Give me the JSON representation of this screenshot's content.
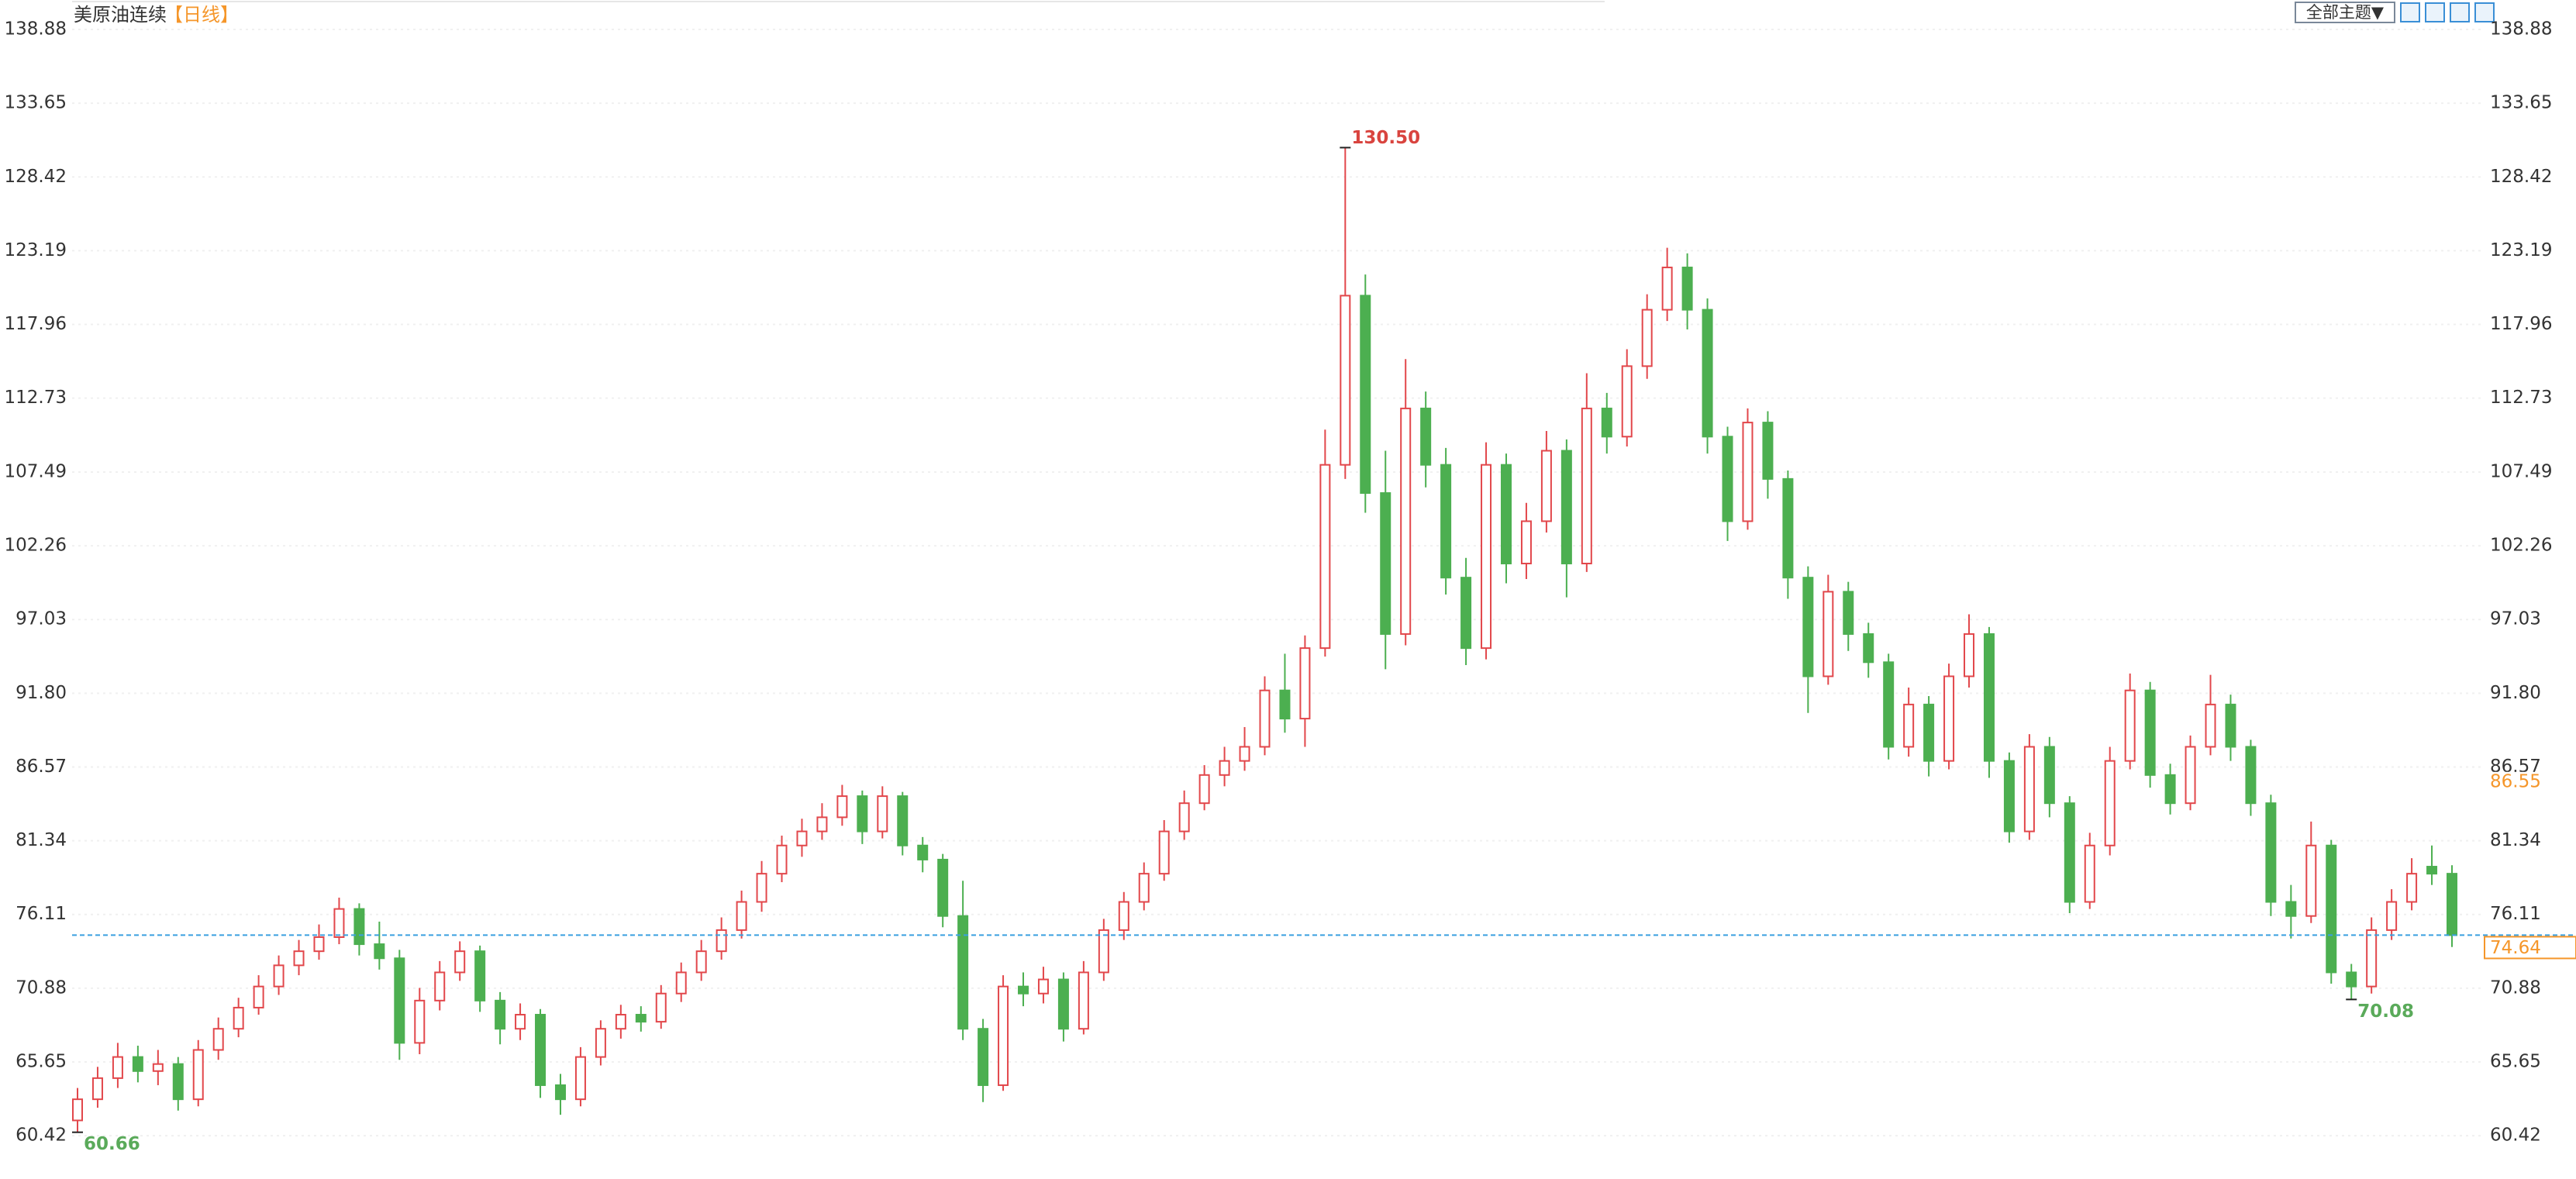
{
  "chart_data": {
    "type": "candlestick",
    "title": "美原油连续",
    "period": "【日线】",
    "theme_button": "全部主题▼",
    "ylim": [
      57.62,
      140.97
    ],
    "yticks": [
      60.42,
      65.65,
      70.88,
      76.11,
      81.34,
      86.57,
      {
        "value": 91.8,
        "label": "91.80"
      },
      97.03,
      102.26,
      107.49,
      112.73,
      117.96,
      123.19,
      128.42,
      133.65,
      138.88
    ],
    "grid": true,
    "up_color": "#e2474b",
    "down_color": "#4caf50",
    "open": [
      61.5,
      63,
      64.5,
      66,
      65,
      65.5,
      63,
      66.5,
      68,
      69.5,
      71,
      72.5,
      73.5,
      74.5,
      76.5,
      74,
      73,
      67,
      70,
      72,
      73.5,
      70,
      68,
      69,
      64,
      63,
      66,
      68,
      69,
      68.5,
      70.5,
      72,
      73.5,
      75,
      77,
      79,
      81,
      82,
      83,
      84.5,
      82,
      84.5,
      81,
      80,
      76,
      68,
      64,
      71,
      70.5,
      71.5,
      68,
      72,
      75,
      77,
      79,
      82,
      84,
      86,
      87,
      88,
      92,
      90,
      95,
      108,
      120,
      106,
      96,
      112,
      108,
      100,
      95,
      108,
      101,
      104,
      109,
      101,
      112,
      110,
      115,
      119,
      122,
      119,
      110,
      104,
      111,
      107,
      100,
      93,
      99,
      96,
      94,
      88,
      91,
      87,
      93,
      96,
      87,
      82,
      88,
      84,
      77,
      81,
      87,
      92,
      86,
      84,
      88,
      91,
      88,
      84,
      77,
      76,
      81,
      72,
      71,
      75,
      77,
      79.5,
      79
    ],
    "high": [
      63.8,
      65.3,
      67,
      66.8,
      66.5,
      66,
      67.2,
      68.8,
      70.2,
      71.8,
      73.2,
      74.3,
      75.4,
      77.3,
      76.9,
      75.6,
      73.6,
      70.9,
      72.8,
      74.2,
      73.9,
      70.6,
      69.8,
      69.4,
      64.8,
      66.7,
      68.6,
      69.7,
      69.6,
      71.1,
      72.7,
      74.3,
      75.9,
      77.8,
      79.9,
      81.7,
      82.9,
      84,
      85.3,
      84.9,
      85.2,
      84.8,
      81.6,
      80.4,
      78.5,
      68.7,
      71.8,
      72,
      72.4,
      72,
      72.8,
      75.8,
      77.7,
      79.8,
      82.8,
      84.9,
      86.7,
      88,
      89.4,
      93,
      94.6,
      95.9,
      110.5,
      130.5,
      121.5,
      109,
      115.5,
      113.2,
      109.2,
      101.4,
      109.6,
      108.8,
      105.3,
      110.4,
      109.8,
      114.5,
      113.1,
      116.2,
      120.1,
      123.4,
      123,
      119.8,
      110.7,
      112,
      111.8,
      107.6,
      100.8,
      100.2,
      99.7,
      96.8,
      94.6,
      92.2,
      91.6,
      93.9,
      97.4,
      96.5,
      87.6,
      88.9,
      88.7,
      84.5,
      81.9,
      88,
      93.2,
      92.6,
      86.8,
      88.8,
      93.1,
      91.7,
      88.5,
      84.6,
      78.2,
      82.7,
      81.4,
      72.6,
      75.9,
      77.9,
      80.1,
      81,
      79.6
    ],
    "low": [
      60.66,
      62.4,
      63.8,
      64.2,
      64,
      62.2,
      62.5,
      65.8,
      67.4,
      69,
      70.4,
      71.8,
      72.9,
      74,
      73.2,
      72.2,
      65.8,
      66.2,
      69.3,
      71.4,
      69.2,
      66.9,
      67.2,
      63.1,
      61.9,
      62.5,
      65.4,
      67.3,
      67.8,
      68,
      69.9,
      71.4,
      72.9,
      74.4,
      76.3,
      78.4,
      80.2,
      81.4,
      82.4,
      81.1,
      81.5,
      80.3,
      79.1,
      75.2,
      67.2,
      62.8,
      63.6,
      69.6,
      69.8,
      67.1,
      67.6,
      71.4,
      74.3,
      76.4,
      78.5,
      81.4,
      83.5,
      85.2,
      86.3,
      87.4,
      89,
      88,
      94.4,
      107,
      104.6,
      93.5,
      95.2,
      106.4,
      98.8,
      93.8,
      94.2,
      99.6,
      99.9,
      103.2,
      98.6,
      100.4,
      108.8,
      109.3,
      114.1,
      118.2,
      117.6,
      108.8,
      102.6,
      103.4,
      105.6,
      98.5,
      90.4,
      92.4,
      94.8,
      92.9,
      87.1,
      87.3,
      85.9,
      86.4,
      92.2,
      85.8,
      81.2,
      81.4,
      83,
      76.2,
      76.5,
      80.3,
      86.4,
      85.1,
      83.2,
      83.5,
      87.4,
      87,
      83.1,
      76,
      74.4,
      75.5,
      71.2,
      70.08,
      70.5,
      74.3,
      76.4,
      78.2,
      73.8
    ],
    "close": [
      63,
      64.5,
      66,
      65,
      65.5,
      63,
      66.5,
      68,
      69.5,
      71,
      72.5,
      73.5,
      74.5,
      76.5,
      74,
      73,
      67,
      70,
      72,
      73.5,
      70,
      68,
      69,
      64,
      63,
      66,
      68,
      69,
      68.5,
      70.5,
      72,
      73.5,
      75,
      77,
      79,
      81,
      82,
      83,
      84.5,
      82,
      84.5,
      81,
      80,
      76,
      68,
      64,
      71,
      70.5,
      71.5,
      68,
      72,
      75,
      77,
      79,
      82,
      84,
      86,
      87,
      88,
      92,
      90,
      95,
      108,
      120,
      106,
      96,
      112,
      108,
      100,
      95,
      108,
      101,
      104,
      109,
      101,
      112,
      110,
      115,
      119,
      122,
      119,
      110,
      104,
      111,
      107,
      100,
      93,
      99,
      96,
      94,
      88,
      91,
      87,
      93,
      96,
      87,
      82,
      88,
      84,
      77,
      81,
      87,
      92,
      86,
      84,
      88,
      91,
      88,
      84,
      77,
      76,
      81,
      72,
      71,
      75,
      77,
      79,
      79,
      74.64
    ],
    "annotations": [
      {
        "value": 130.5,
        "label": "130.50",
        "color": "#d9443f"
      },
      {
        "value": 70.08,
        "label": "70.08",
        "color": "#5aaa5a"
      },
      {
        "value": 60.66,
        "label": "60.66",
        "color": "#5aaa5a"
      }
    ],
    "last_price": 74.64,
    "reference_price": 86.55,
    "accent_color": "#f5962a"
  }
}
